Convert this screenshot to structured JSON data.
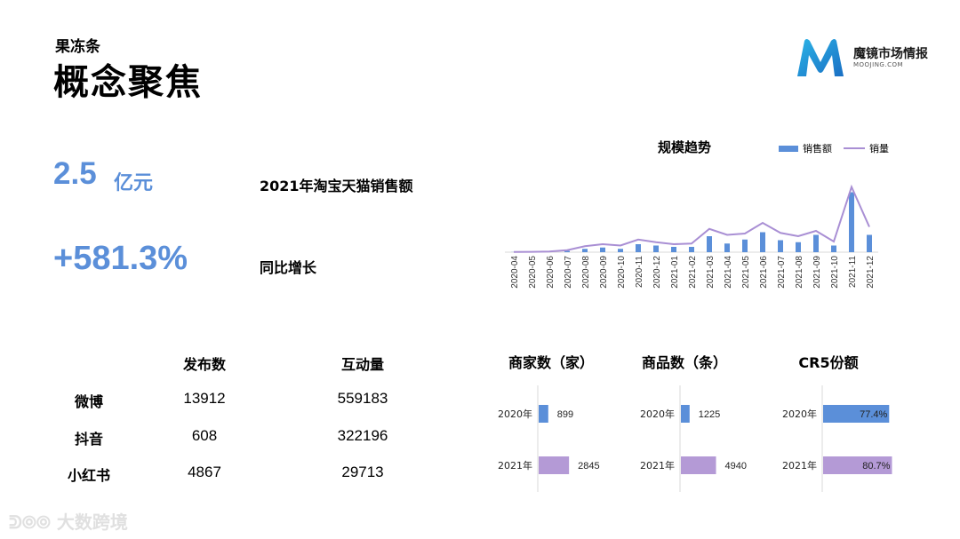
{
  "header": {
    "subtitle": "果冻条",
    "title": "概念聚焦"
  },
  "logo": {
    "name": "魔镜市场情报",
    "sub": "MOOJING.COM"
  },
  "kpis": {
    "sales_value": "2.5",
    "sales_unit": "亿元",
    "sales_label": "2021年淘宝天猫销售额",
    "growth_value": "+581.3%",
    "growth_label": "同比增长"
  },
  "social": {
    "col1": "发布数",
    "col2": "互动量",
    "rows": [
      {
        "name": "微博",
        "posts": "13912",
        "engagement": "559183"
      },
      {
        "name": "抖音",
        "posts": "608",
        "engagement": "322196"
      },
      {
        "name": "小红书",
        "posts": "4867",
        "engagement": "29713"
      }
    ]
  },
  "colors": {
    "blue": "#5b8fd9",
    "purple": "#b49ad6",
    "line": "#a98fd4"
  },
  "watermark": "大数跨境",
  "chart_data": [
    {
      "type": "bar",
      "title": "规模趋势",
      "categories": [
        "2020-04",
        "2020-05",
        "2020-06",
        "2020-07",
        "2020-08",
        "2020-09",
        "2020-10",
        "2020-11",
        "2020-12",
        "2021-01",
        "2021-02",
        "2021-03",
        "2021-04",
        "2021-05",
        "2021-06",
        "2021-07",
        "2021-08",
        "2021-09",
        "2021-10",
        "2021-11",
        "2021-12"
      ],
      "series": [
        {
          "name": "销售额",
          "kind": "bar",
          "values": [
            0.2,
            0.3,
            0.5,
            2,
            5,
            7,
            5,
            12,
            10,
            8,
            8,
            24,
            13,
            19,
            30,
            18,
            15,
            26,
            10,
            90,
            26
          ]
        },
        {
          "name": "销量",
          "kind": "line",
          "values": [
            0.3,
            0.5,
            1,
            3,
            9,
            12,
            10,
            19,
            15,
            12,
            13,
            35,
            26,
            28,
            44,
            29,
            24,
            32,
            16,
            98,
            38
          ]
        }
      ],
      "legend": "top-right",
      "grid": false,
      "ylim": [
        0,
        100
      ]
    },
    {
      "type": "bar",
      "title": "商家数（家）",
      "orientation": "horizontal",
      "categories": [
        "2020年",
        "2021年"
      ],
      "values": [
        899,
        2845
      ],
      "xlim": [
        0,
        8000
      ]
    },
    {
      "type": "bar",
      "title": "商品数（条）",
      "orientation": "horizontal",
      "categories": [
        "2020年",
        "2021年"
      ],
      "values": [
        1225,
        4940
      ],
      "xlim": [
        0,
        12000
      ]
    },
    {
      "type": "bar",
      "title": "CR5份额",
      "orientation": "horizontal",
      "categories": [
        "2020年",
        "2021年"
      ],
      "values": [
        77.4,
        80.7
      ],
      "value_labels": [
        "77.4%",
        "80.7%"
      ],
      "xlim": [
        0,
        100
      ]
    }
  ]
}
